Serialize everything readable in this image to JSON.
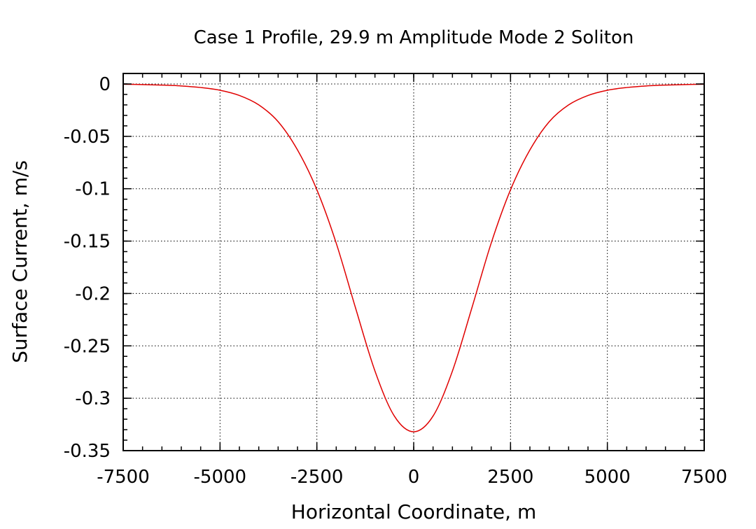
{
  "chart_data": {
    "type": "line",
    "title": "Case 1 Profile, 29.9 m Amplitude Mode 2 Soliton",
    "xlabel": "Horizontal Coordinate, m",
    "ylabel": "Surface Current, m/s",
    "xlim": [
      -7500,
      7500
    ],
    "ylim": [
      -0.35,
      0.01
    ],
    "x_ticks": [
      -7500,
      -5000,
      -2500,
      0,
      2500,
      5000,
      7500
    ],
    "x_tick_labels": [
      "-7500",
      "-5000",
      "-2500",
      "0",
      "2500",
      "5000",
      "7500"
    ],
    "y_ticks": [
      0,
      -0.05,
      -0.1,
      -0.15,
      -0.2,
      -0.25,
      -0.3,
      -0.35
    ],
    "y_tick_labels": [
      "0",
      "-0.05",
      "-0.1",
      "-0.15",
      "-0.2",
      "-0.25",
      "-0.3",
      "-0.35"
    ],
    "grid": true,
    "series": [
      {
        "color": "#e00000",
        "x": [
          -7500,
          -7000,
          -6500,
          -6000,
          -5500,
          -5000,
          -4500,
          -4000,
          -3500,
          -3000,
          -2500,
          -2000,
          -1500,
          -1000,
          -500,
          0,
          500,
          1000,
          1500,
          2000,
          2500,
          3000,
          3500,
          4000,
          4500,
          5000,
          5500,
          6000,
          6500,
          7000,
          7500
        ],
        "y": [
          -0.0003,
          -0.0006,
          -0.0011,
          -0.0019,
          -0.0034,
          -0.006,
          -0.011,
          -0.02,
          -0.036,
          -0.063,
          -0.101,
          -0.152,
          -0.214,
          -0.274,
          -0.317,
          -0.332,
          -0.317,
          -0.274,
          -0.214,
          -0.152,
          -0.101,
          -0.063,
          -0.036,
          -0.02,
          -0.011,
          -0.006,
          -0.0034,
          -0.0019,
          -0.0011,
          -0.0006,
          -0.0003
        ]
      }
    ]
  }
}
